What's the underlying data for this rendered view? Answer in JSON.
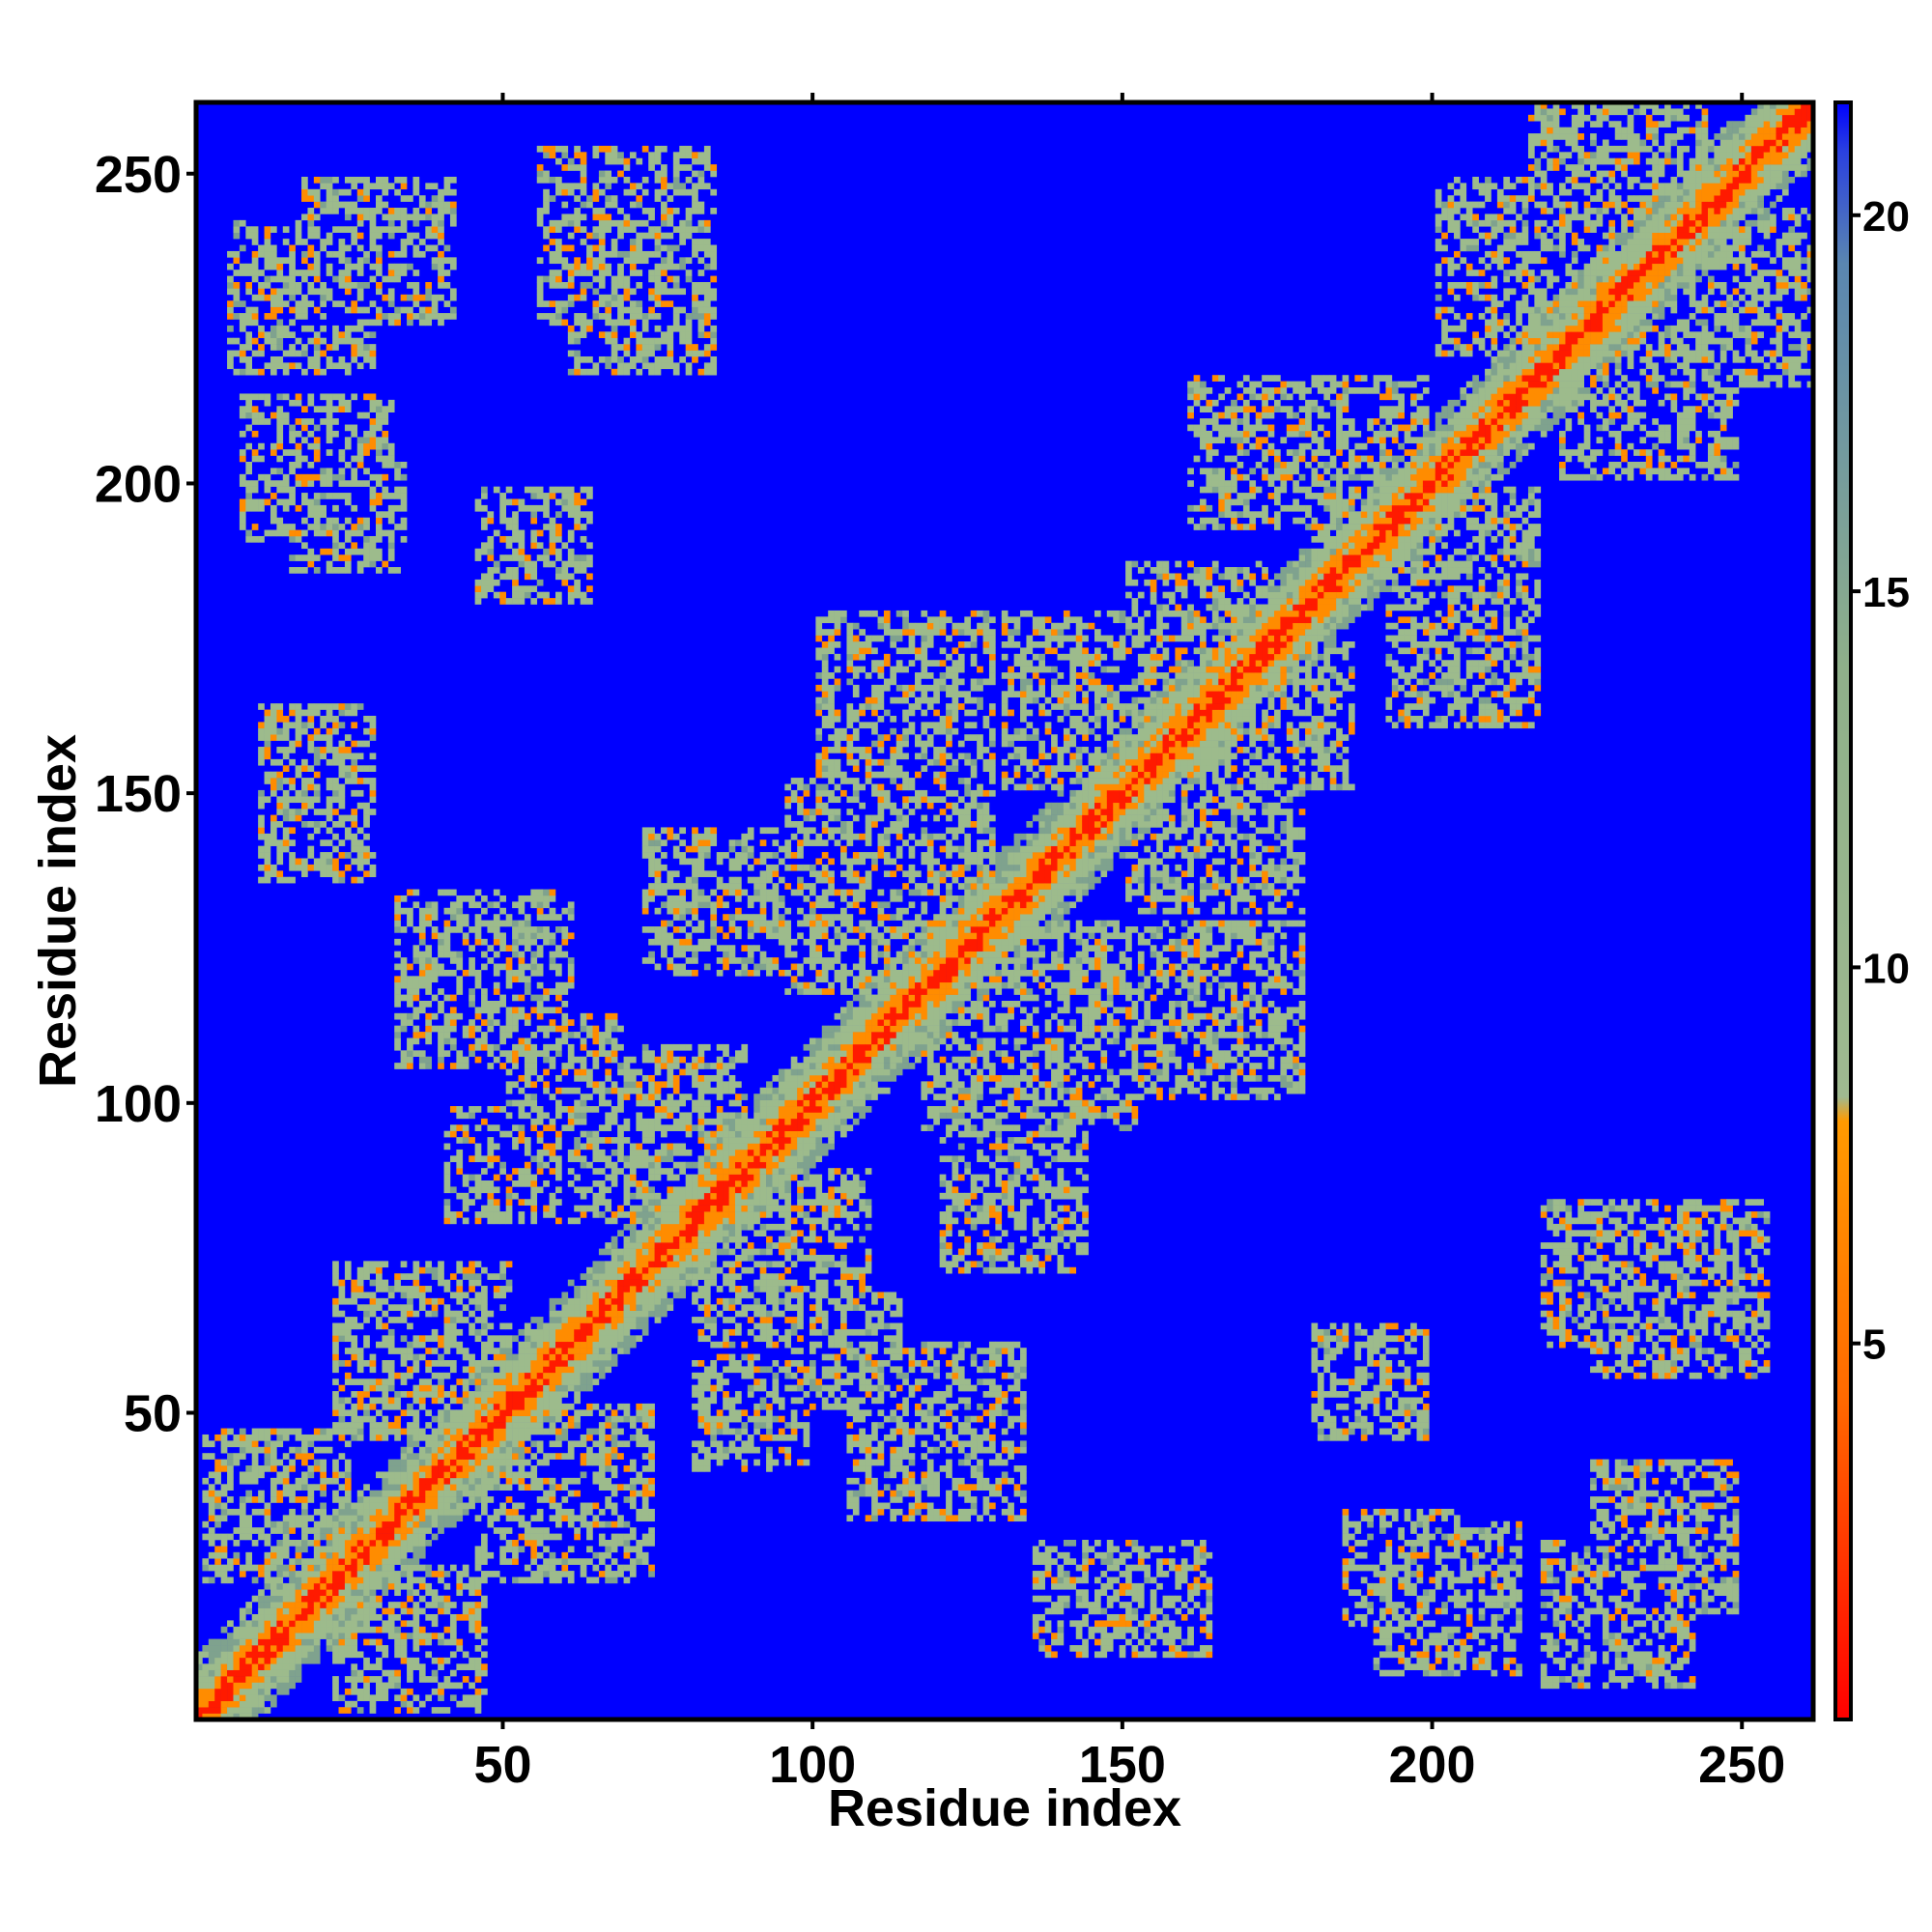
{
  "chart_data": {
    "type": "heatmap",
    "title": "",
    "xlabel": "Residue index",
    "ylabel": "Residue index",
    "xlim": [
      1,
      261
    ],
    "ylim": [
      1,
      261
    ],
    "x_ticks": [
      "50",
      "100",
      "150",
      "200",
      "250"
    ],
    "y_ticks": [
      "50",
      "100",
      "150",
      "200",
      "250"
    ],
    "colorbar": {
      "ticks": [
        "5",
        "10",
        "15",
        "20"
      ],
      "range": [
        0,
        21.5
      ],
      "colors": [
        "#ff0000",
        "#ff8c00",
        "#8fb08a",
        "#4a78b0",
        "#0000ff"
      ]
    },
    "background_color": "#0000ff",
    "diagonal_color": "#ff0000",
    "contact_blocks": [
      {
        "i": 1,
        "j": 35,
        "w": 25
      },
      {
        "i": 22,
        "j": 60,
        "w": 30
      },
      {
        "i": 32,
        "j": 120,
        "w": 30
      },
      {
        "i": 60,
        "j": 95,
        "w": 30
      },
      {
        "i": 95,
        "j": 135,
        "w": 35
      },
      {
        "i": 100,
        "j": 165,
        "w": 30
      },
      {
        "i": 130,
        "j": 165,
        "w": 30
      },
      {
        "i": 150,
        "j": 175,
        "w": 25
      },
      {
        "i": 160,
        "j": 205,
        "w": 25
      },
      {
        "i": 175,
        "j": 205,
        "w": 25
      },
      {
        "i": 200,
        "j": 235,
        "w": 30
      },
      {
        "i": 215,
        "j": 255,
        "w": 30
      },
      {
        "i": 5,
        "j": 230,
        "w": 25
      },
      {
        "i": 15,
        "j": 195,
        "w": 20
      },
      {
        "i": 55,
        "j": 240,
        "w": 30
      },
      {
        "i": 40,
        "j": 90,
        "w": 20
      },
      {
        "i": 60,
        "j": 230,
        "w": 25
      },
      {
        "i": 10,
        "j": 145,
        "w": 20
      },
      {
        "i": 95,
        "j": 60,
        "w": 20
      },
      {
        "i": 120,
        "j": 85,
        "w": 25
      },
      {
        "i": 180,
        "j": 55,
        "w": 20
      },
      {
        "i": 190,
        "j": 20,
        "w": 25
      },
      {
        "i": 145,
        "j": 20,
        "w": 20
      },
      {
        "i": 225,
        "j": 30,
        "w": 25
      }
    ]
  }
}
